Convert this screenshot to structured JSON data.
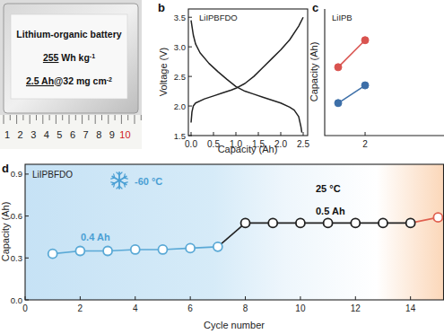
{
  "photo": {
    "lines": [
      [
        {
          "text": "Lithium-organic battery"
        }
      ],
      [
        {
          "text": "255",
          "underline": true
        },
        {
          "text": " Wh kg"
        },
        {
          "text": "-1",
          "sup": true
        }
      ],
      [
        {
          "text": "2.5 Ah",
          "underline": true
        },
        {
          "text": "@32 mg cm"
        },
        {
          "text": "-2",
          "sup": true
        }
      ]
    ],
    "ruler": [
      1,
      2,
      3,
      4,
      5,
      6,
      7,
      8,
      9,
      10
    ]
  },
  "chart_data": [
    {
      "type": "line",
      "title": "LiIPBFDO",
      "annotations": [
        "b"
      ],
      "x_label": "Capacity (Ah)",
      "y_label": "Voltage (V)",
      "xlim": [
        -0.06,
        2.6
      ],
      "ylim": [
        1.5,
        3.64
      ],
      "xticks": [
        {
          "value": 0,
          "label": "0.0"
        },
        0.5,
        {
          "value": 1,
          "label": "1.0"
        },
        1.5,
        {
          "value": 2,
          "label": "2.0"
        },
        2.5
      ],
      "yticks": [
        1.5,
        {
          "value": 2,
          "label": "2.0"
        },
        2.5,
        {
          "value": 3,
          "label": "3.0"
        },
        3.5
      ],
      "series": [
        {
          "x": [
            0,
            0.05,
            0.1,
            0.2,
            0.4,
            0.6,
            0.8,
            1.0,
            1.2,
            1.4,
            1.6,
            1.8,
            2.0,
            2.2,
            2.3,
            2.4,
            2.45,
            2.47
          ],
          "values": [
            3.45,
            3.2,
            3.05,
            2.9,
            2.72,
            2.58,
            2.45,
            2.33,
            2.25,
            2.2,
            2.15,
            2.1,
            2.05,
            1.98,
            1.93,
            1.82,
            1.65,
            1.55
          ],
          "color": "#222222"
        },
        {
          "x": [
            0,
            0.02,
            0.05,
            0.1,
            0.3,
            0.5,
            0.7,
            0.9,
            1.0,
            1.2,
            1.4,
            1.6,
            1.8,
            2.0,
            2.2,
            2.4,
            2.5
          ],
          "values": [
            1.72,
            1.9,
            2.0,
            2.05,
            2.12,
            2.17,
            2.22,
            2.27,
            2.3,
            2.38,
            2.5,
            2.65,
            2.8,
            2.95,
            3.12,
            3.35,
            3.5
          ],
          "color": "#222222"
        }
      ]
    },
    {
      "type": "line",
      "title": "LiIPB",
      "annotations": [
        "c"
      ],
      "y_label": "Capacity (Ah)",
      "xlim": [
        0.5,
        4.93
      ],
      "ylim": [
        1,
        4
      ],
      "xticks": [
        2
      ],
      "tick_labels": "x",
      "series": [
        {
          "x": [
            1,
            2
          ],
          "values": [
            2.62,
            3.26
          ],
          "color": "#d9534f",
          "marker": "circle"
        },
        {
          "x": [
            1,
            2
          ],
          "values": [
            1.77,
            2.19
          ],
          "color": "#3d6fa8",
          "marker": "circle"
        }
      ]
    },
    {
      "type": "line",
      "title": "LiIPBFDO",
      "annotations": [
        "d",
        "-60 °C",
        "0.4 Ah",
        "25 °C",
        "0.5 Ah"
      ],
      "x_label": "Cycle number",
      "y_label": "Capacity (Ah)",
      "xlim": [
        0,
        15.2
      ],
      "ylim": [
        0,
        0.97
      ],
      "xticks": [
        0,
        2,
        4,
        6,
        8,
        10,
        12,
        14
      ],
      "yticks": [
        {
          "value": 0,
          "label": "0.0"
        },
        0.3,
        0.6,
        0.9
      ],
      "series": [
        {
          "x": [
            1,
            2,
            3,
            4,
            5,
            6,
            7,
            8,
            9,
            10,
            11,
            12,
            13,
            14,
            15
          ],
          "values": [
            0.33,
            0.35,
            0.35,
            0.36,
            0.36,
            0.37,
            0.38,
            0.55,
            0.55,
            0.55,
            0.55,
            0.55,
            0.55,
            0.55,
            0.59
          ],
          "colors": [
            "#5aa9d6",
            "#5aa9d6",
            "#5aa9d6",
            "#5aa9d6",
            "#5aa9d6",
            "#5aa9d6",
            "#5aa9d6",
            "#222222",
            "#222222",
            "#222222",
            "#222222",
            "#222222",
            "#222222",
            "#222222",
            "#e0604f"
          ],
          "marker": "open_circle"
        }
      ]
    }
  ]
}
